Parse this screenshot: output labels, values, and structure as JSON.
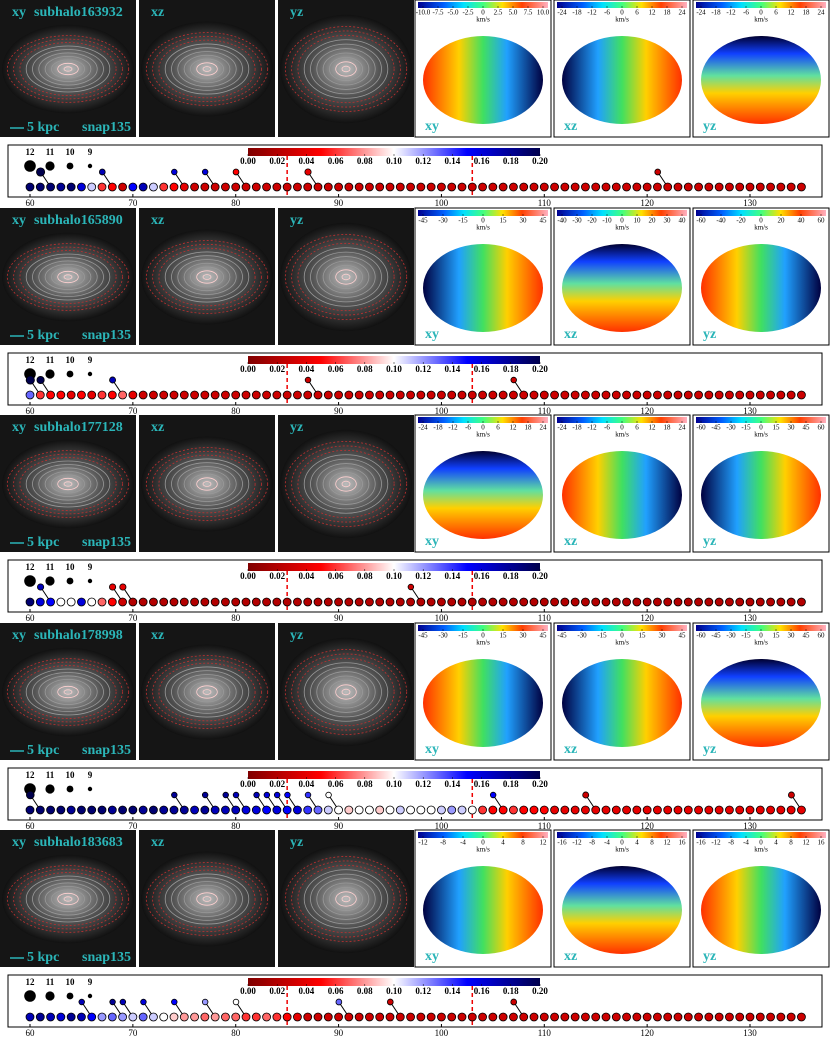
{
  "projections": [
    "xy",
    "xz",
    "yz"
  ],
  "scale_label": "5 kpc",
  "snap_label": "snap135",
  "unit": "km/s",
  "colormap": [
    "#800000",
    "#ff0000",
    "#ffffff",
    "#0000ff",
    "#00004c"
  ],
  "colorbar_ticks": [
    {
      "value": 0,
      "label": "0.00"
    },
    0.02,
    0.04,
    0.06,
    0.08,
    {
      "value": 0.1,
      "label": "0.10"
    },
    0.12,
    0.14,
    0.16,
    0.18,
    {
      "value": 0.2,
      "label": "0.20"
    }
  ],
  "merger_legend": [
    12,
    11,
    10,
    9
  ],
  "xlim": [
    57.86,
    137
  ],
  "xticks": [
    60,
    70,
    80,
    90,
    100,
    110,
    120,
    130
  ],
  "dashed_snapshots": [
    85,
    103
  ],
  "snapshots": [
    60,
    61,
    62,
    63,
    64,
    65,
    66,
    67,
    68,
    69,
    70,
    71,
    72,
    73,
    74,
    75,
    76,
    77,
    78,
    79,
    80,
    81,
    82,
    83,
    84,
    85,
    86,
    87,
    88,
    89,
    90,
    91,
    92,
    93,
    94,
    95,
    96,
    97,
    98,
    99,
    100,
    101,
    102,
    103,
    104,
    105,
    106,
    107,
    108,
    109,
    110,
    111,
    112,
    113,
    114,
    115,
    116,
    117,
    118,
    119,
    120,
    121,
    122,
    123,
    124,
    125,
    126,
    127,
    128,
    129,
    130,
    131,
    132,
    133,
    134,
    135
  ],
  "galaxies": [
    {
      "name": "subhalo163932",
      "velocity_ticks": [
        [
          {
            "value": -10,
            "label": "-10.0"
          },
          -7.5,
          {
            "value": -5,
            "label": "-5.0"
          },
          -2.5,
          0,
          2.5,
          {
            "value": 5,
            "label": "5.0"
          },
          7.5,
          {
            "value": 10,
            "label": "10.0"
          }
        ],
        [
          -24,
          -18,
          -12,
          -6,
          0,
          6,
          12,
          18,
          24
        ],
        [
          -24,
          -18,
          -12,
          -6,
          0,
          6,
          12,
          18,
          24
        ]
      ],
      "values": [
        0.19,
        0.19,
        0.19,
        0.18,
        0.19,
        0.16,
        0.11,
        0.06,
        0.05,
        0.03,
        0.15,
        0.17,
        0.11,
        0.06,
        0.05,
        0.04,
        0.03,
        0.03,
        0.03,
        0.03,
        0.03,
        0.03,
        0.03,
        0.03,
        0.03,
        0.03,
        0.03,
        0.03,
        0.03,
        0.03,
        0.03,
        0.03,
        0.03,
        0.03,
        0.03,
        0.03,
        0.03,
        0.03,
        0.03,
        0.03,
        0.03,
        0.03,
        0.03,
        0.03,
        0.03,
        0.03,
        0.03,
        0.03,
        0.03,
        0.03,
        0.03,
        0.03,
        0.03,
        0.03,
        0.03,
        0.03,
        0.03,
        0.03,
        0.03,
        0.03,
        0.03,
        0.03,
        0.03,
        0.03,
        0.03,
        0.03,
        0.03,
        0.03,
        0.03,
        0.03,
        0.03,
        0.03,
        0.03,
        0.03,
        0.03,
        0.03
      ],
      "mergers": [
        {
          "snap": 62,
          "mass": 10.6,
          "value": 0.2
        },
        {
          "snap": 68,
          "mass": 9.6,
          "value": 0.17
        },
        {
          "snap": 75,
          "mass": 9.5,
          "value": 0.16
        },
        {
          "snap": 78,
          "mass": 9.5,
          "value": 0.16
        },
        {
          "snap": 81,
          "mass": 9.6,
          "value": 0.05
        },
        {
          "snap": 88,
          "mass": 9.8,
          "value": 0.04
        },
        {
          "snap": 122,
          "mass": 9.6,
          "value": 0.03
        }
      ]
    },
    {
      "name": "subhalo165890",
      "velocity_ticks": [
        [
          -45,
          -30,
          -15,
          0,
          15,
          30,
          45
        ],
        [
          -40,
          -30,
          -20,
          -10,
          0,
          10,
          20,
          30,
          40
        ],
        [
          -60,
          -40,
          -20,
          0,
          20,
          40,
          60
        ]
      ],
      "values": [
        0.13,
        0.06,
        0.05,
        0.05,
        0.04,
        0.05,
        0.04,
        0.06,
        0.05,
        0.07,
        0.04,
        0.03,
        0.03,
        0.03,
        0.03,
        0.03,
        0.03,
        0.03,
        0.03,
        0.03,
        0.03,
        0.03,
        0.03,
        0.03,
        0.03,
        0.03,
        0.03,
        0.03,
        0.03,
        0.03,
        0.03,
        0.03,
        0.03,
        0.03,
        0.03,
        0.03,
        0.03,
        0.03,
        0.03,
        0.03,
        0.03,
        0.03,
        0.03,
        0.03,
        0.03,
        0.03,
        0.03,
        0.03,
        0.03,
        0.03,
        0.03,
        0.03,
        0.03,
        0.03,
        0.03,
        0.03,
        0.03,
        0.03,
        0.03,
        0.03,
        0.03,
        0.03,
        0.03,
        0.03,
        0.03,
        0.03,
        0.03,
        0.03,
        0.03,
        0.03,
        0.03,
        0.03,
        0.03,
        0.03,
        0.03,
        0.03
      ],
      "mergers": [
        {
          "snap": 61,
          "mass": 10.6,
          "value": 0.2
        },
        {
          "snap": 62,
          "mass": 10.2,
          "value": 0.2
        },
        {
          "snap": 69,
          "mass": 9.7,
          "value": 0.17
        },
        {
          "snap": 88,
          "mass": 9.5,
          "value": 0.03
        },
        {
          "snap": 108,
          "mass": 9.5,
          "value": 0.03
        }
      ]
    },
    {
      "name": "subhalo177128",
      "velocity_ticks": [
        [
          -24,
          -18,
          -12,
          -6,
          0,
          6,
          12,
          18,
          24
        ],
        [
          -24,
          -18,
          -12,
          -6,
          0,
          6,
          12,
          18,
          24
        ],
        [
          -60,
          -45,
          -30,
          -15,
          0,
          15,
          30,
          45,
          60
        ]
      ],
      "values": [
        0.19,
        0.16,
        0.15,
        0.1,
        0.1,
        0.16,
        0.1,
        0.07,
        0.05,
        0.03,
        0.02,
        0.02,
        0.02,
        0.02,
        0.02,
        0.02,
        0.02,
        0.02,
        0.02,
        0.02,
        0.02,
        0.02,
        0.02,
        0.02,
        0.02,
        0.02,
        0.02,
        0.02,
        0.02,
        0.02,
        0.02,
        0.02,
        0.02,
        0.02,
        0.02,
        0.02,
        0.02,
        0.02,
        0.02,
        0.02,
        0.02,
        0.02,
        0.02,
        0.02,
        0.02,
        0.02,
        0.02,
        0.02,
        0.02,
        0.02,
        0.02,
        0.02,
        0.02,
        0.02,
        0.02,
        0.02,
        0.02,
        0.02,
        0.02,
        0.02,
        0.02,
        0.02,
        0.02,
        0.02,
        0.02,
        0.02,
        0.02,
        0.02,
        0.02,
        0.02,
        0.02,
        0.02,
        0.02,
        0.02,
        0.02,
        0.02
      ],
      "mergers": [
        {
          "snap": 62,
          "mass": 9.8,
          "value": 0.17
        },
        {
          "snap": 69,
          "mass": 9.8,
          "value": 0.04
        },
        {
          "snap": 70,
          "mass": 9.8,
          "value": 0.04
        },
        {
          "snap": 98,
          "mass": 9.5,
          "value": 0.03
        }
      ]
    },
    {
      "name": "subhalo178998",
      "velocity_ticks": [
        [
          -45,
          -30,
          -15,
          0,
          15,
          30,
          45
        ],
        [
          -45,
          -30,
          -15,
          0,
          15,
          30,
          45
        ],
        [
          -60,
          -45,
          -30,
          -15,
          0,
          15,
          30,
          45,
          60
        ]
      ],
      "values": [
        0.19,
        0.19,
        0.19,
        0.19,
        0.18,
        0.19,
        0.19,
        0.19,
        0.18,
        0.19,
        0.19,
        0.18,
        0.19,
        0.18,
        0.18,
        0.18,
        0.17,
        0.18,
        0.17,
        0.17,
        0.17,
        0.16,
        0.16,
        0.15,
        0.16,
        0.15,
        0.16,
        0.14,
        0.13,
        0.11,
        0.1,
        0.09,
        0.1,
        0.1,
        0.09,
        0.1,
        0.11,
        0.1,
        0.1,
        0.1,
        0.11,
        0.12,
        0.11,
        0.1,
        0.06,
        0.05,
        0.05,
        0.06,
        0.05,
        0.05,
        0.05,
        0.04,
        0.04,
        0.04,
        0.04,
        0.04,
        0.04,
        0.04,
        0.04,
        0.04,
        0.04,
        0.04,
        0.04,
        0.04,
        0.04,
        0.04,
        0.04,
        0.04,
        0.04,
        0.04,
        0.04,
        0.04,
        0.04,
        0.04,
        0.04,
        0.04
      ],
      "mergers": [
        {
          "snap": 61,
          "mass": 10.4,
          "value": 0.2
        },
        {
          "snap": 75,
          "mass": 9.5,
          "value": 0.18
        },
        {
          "snap": 78,
          "mass": 9.5,
          "value": 0.18
        },
        {
          "snap": 80,
          "mass": 9.5,
          "value": 0.18
        },
        {
          "snap": 81,
          "mass": 9.5,
          "value": 0.17
        },
        {
          "snap": 83,
          "mass": 9.5,
          "value": 0.17
        },
        {
          "snap": 84,
          "mass": 9.5,
          "value": 0.16
        },
        {
          "snap": 85,
          "mass": 9.5,
          "value": 0.16
        },
        {
          "snap": 86,
          "mass": 9.5,
          "value": 0.15
        },
        {
          "snap": 88,
          "mass": 9.5,
          "value": 0.14
        },
        {
          "snap": 90,
          "mass": 9.5,
          "value": 0.1
        },
        {
          "snap": 106,
          "mass": 9.5,
          "value": 0.15
        },
        {
          "snap": 115,
          "mass": 9.7,
          "value": 0.03
        },
        {
          "snap": 135,
          "mass": 9.7,
          "value": 0.03
        }
      ]
    },
    {
      "name": "subhalo183683",
      "velocity_ticks": [
        [
          -12,
          -8,
          -4,
          0,
          4,
          8,
          12
        ],
        [
          -16,
          -12,
          -8,
          -4,
          0,
          4,
          8,
          12,
          16
        ],
        [
          -16,
          -12,
          -8,
          -4,
          0,
          4,
          8,
          12,
          16
        ]
      ],
      "values": [
        0.17,
        0.18,
        0.17,
        0.16,
        0.18,
        0.17,
        0.15,
        0.12,
        0.13,
        0.12,
        0.11,
        0.13,
        0.11,
        0.1,
        0.09,
        0.08,
        0.08,
        0.07,
        0.08,
        0.07,
        0.07,
        0.06,
        0.06,
        0.07,
        0.06,
        0.05,
        0.04,
        0.03,
        0.03,
        0.03,
        0.03,
        0.03,
        0.03,
        0.03,
        0.03,
        0.03,
        0.03,
        0.03,
        0.03,
        0.03,
        0.03,
        0.03,
        0.03,
        0.03,
        0.03,
        0.03,
        0.03,
        0.03,
        0.03,
        0.03,
        0.03,
        0.03,
        0.03,
        0.03,
        0.03,
        0.03,
        0.03,
        0.03,
        0.03,
        0.03,
        0.03,
        0.03,
        0.03,
        0.03,
        0.03,
        0.03,
        0.03,
        0.03,
        0.03,
        0.03,
        0.03,
        0.03,
        0.03,
        0.03,
        0.03,
        0.03
      ],
      "mergers": [
        {
          "snap": 66,
          "mass": 9.5,
          "value": 0.17
        },
        {
          "snap": 69,
          "mass": 9.5,
          "value": 0.18
        },
        {
          "snap": 70,
          "mass": 9.5,
          "value": 0.17
        },
        {
          "snap": 72,
          "mass": 9.5,
          "value": 0.16
        },
        {
          "snap": 75,
          "mass": 9.5,
          "value": 0.15
        },
        {
          "snap": 78,
          "mass": 9.5,
          "value": 0.12
        },
        {
          "snap": 81,
          "mass": 9.5,
          "value": 0.1
        },
        {
          "snap": 91,
          "mass": 9.6,
          "value": 0.13
        },
        {
          "snap": 96,
          "mass": 9.6,
          "value": 0.03
        },
        {
          "snap": 108,
          "mass": 9.6,
          "value": 0.03
        }
      ]
    }
  ]
}
